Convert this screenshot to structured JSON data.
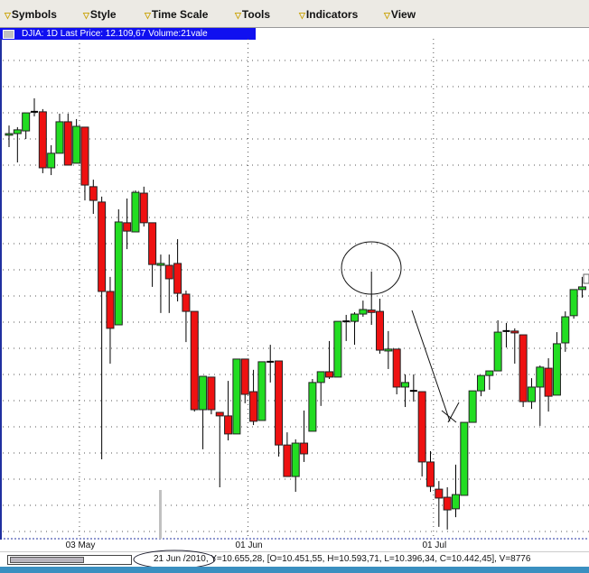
{
  "menu": [
    {
      "label": "Symbols",
      "icon": "dropdown-arrow-icon"
    },
    {
      "label": "Style",
      "icon": "dropdown-arrow-icon"
    },
    {
      "label": "Time Scale",
      "icon": "dropdown-arrow-icon"
    },
    {
      "label": "Tools",
      "icon": "dropdown-arrow-icon"
    },
    {
      "label": "Indicators",
      "icon": "dropdown-arrow-icon"
    },
    {
      "label": "View",
      "icon": "dropdown-arrow-icon"
    }
  ],
  "title": "DJIA: 1D Last Price: 12.109,67 Volume:21vale",
  "status": {
    "date": "21 Jun /2010,",
    "values": "Y=10.655,28, [O=10.451,55, H=10.593,71, L=10.396,34, C=10.442,45], V=8776"
  },
  "colors": {
    "up": "#22dd22",
    "down": "#ee1111",
    "title_bg": "#1010f0",
    "grid": "#555555"
  },
  "chart_data": {
    "type": "candlestick",
    "grid": true,
    "x_ticks": [
      {
        "label": "03 May",
        "index": 9
      },
      {
        "label": "01 Jun",
        "index": 29
      },
      {
        "label": "01 Jul",
        "index": 51
      }
    ],
    "ohlc": [
      [
        11100,
        11136,
        11056,
        11106
      ],
      [
        11106,
        11130,
        10999,
        11120
      ],
      [
        11116,
        11183,
        11086,
        11183
      ],
      [
        11187,
        11237,
        11170,
        11187
      ],
      [
        11187,
        11197,
        10959,
        10979
      ],
      [
        10979,
        11063,
        10952,
        11033
      ],
      [
        11033,
        11180,
        11033,
        11150
      ],
      [
        11150,
        11180,
        10989,
        10989
      ],
      [
        10996,
        11160,
        10996,
        11133
      ],
      [
        11130,
        11130,
        10858,
        10915
      ],
      [
        10909,
        10935,
        10808,
        10858
      ],
      [
        10852,
        10872,
        9897,
        10520
      ],
      [
        10520,
        10574,
        10252,
        10383
      ],
      [
        10396,
        10825,
        10396,
        10778
      ],
      [
        10775,
        10865,
        10677,
        10744
      ],
      [
        10741,
        10895,
        10741,
        10888
      ],
      [
        10885,
        10909,
        10761,
        10775
      ],
      [
        10775,
        10775,
        10537,
        10620
      ],
      [
        10617,
        10657,
        10440,
        10624
      ],
      [
        10617,
        10657,
        10440,
        10567
      ],
      [
        10624,
        10714,
        10483,
        10513
      ],
      [
        10510,
        10523,
        10332,
        10446
      ],
      [
        10446,
        10446,
        10074,
        10081
      ],
      [
        10081,
        10205,
        9934,
        10205
      ],
      [
        10202,
        10202,
        10064,
        10081
      ],
      [
        10071,
        10071,
        9793,
        10058
      ],
      [
        10058,
        10188,
        9967,
        9991
      ],
      [
        9991,
        10269,
        9991,
        10269
      ],
      [
        10269,
        10269,
        10105,
        10138
      ],
      [
        10148,
        10229,
        10024,
        10038
      ],
      [
        10041,
        10259,
        10041,
        10259
      ],
      [
        10259,
        10322,
        10182,
        10259
      ],
      [
        10262,
        10262,
        9907,
        9950
      ],
      [
        9950,
        9997,
        9833,
        9833
      ],
      [
        9833,
        9971,
        9776,
        9957
      ],
      [
        9957,
        10078,
        9887,
        9917
      ],
      [
        10001,
        10195,
        10001,
        10182
      ],
      [
        10182,
        10222,
        10095,
        10222
      ],
      [
        10222,
        10336,
        10195,
        10202
      ],
      [
        10202,
        10409,
        10202,
        10409
      ],
      [
        10409,
        10433,
        10336,
        10409
      ],
      [
        10409,
        10443,
        10322,
        10436
      ],
      [
        10436,
        10486,
        10426,
        10453
      ],
      [
        10451,
        10594,
        10396,
        10442
      ],
      [
        10446,
        10493,
        10289,
        10302
      ],
      [
        10299,
        10373,
        10232,
        10306
      ],
      [
        10306,
        10306,
        10138,
        10165
      ],
      [
        10165,
        10212,
        10091,
        10182
      ],
      [
        10151,
        10212,
        10111,
        10151
      ],
      [
        10148,
        10148,
        9833,
        9887
      ],
      [
        9887,
        9927,
        9776,
        9796
      ],
      [
        9786,
        9816,
        9646,
        9753
      ],
      [
        9756,
        9793,
        9636,
        9709
      ],
      [
        9713,
        9877,
        9682,
        9766
      ],
      [
        9763,
        10034,
        9763,
        10034
      ],
      [
        10034,
        10151,
        10034,
        10151
      ],
      [
        10151,
        10208,
        10131,
        10208
      ],
      [
        10208,
        10225,
        10155,
        10225
      ],
      [
        10225,
        10413,
        10225,
        10369
      ],
      [
        10373,
        10403,
        10312,
        10373
      ],
      [
        10373,
        10383,
        10252,
        10366
      ],
      [
        10359,
        10359,
        10091,
        10111
      ],
      [
        10111,
        10198,
        10084,
        10165
      ],
      [
        10165,
        10245,
        10021,
        10239
      ],
      [
        10235,
        10272,
        10074,
        10131
      ],
      [
        10135,
        10369,
        10135,
        10326
      ],
      [
        10329,
        10446,
        10296,
        10426
      ],
      [
        10430,
        10527,
        10419,
        10527
      ],
      [
        10527,
        10574,
        10497,
        10537
      ]
    ]
  }
}
